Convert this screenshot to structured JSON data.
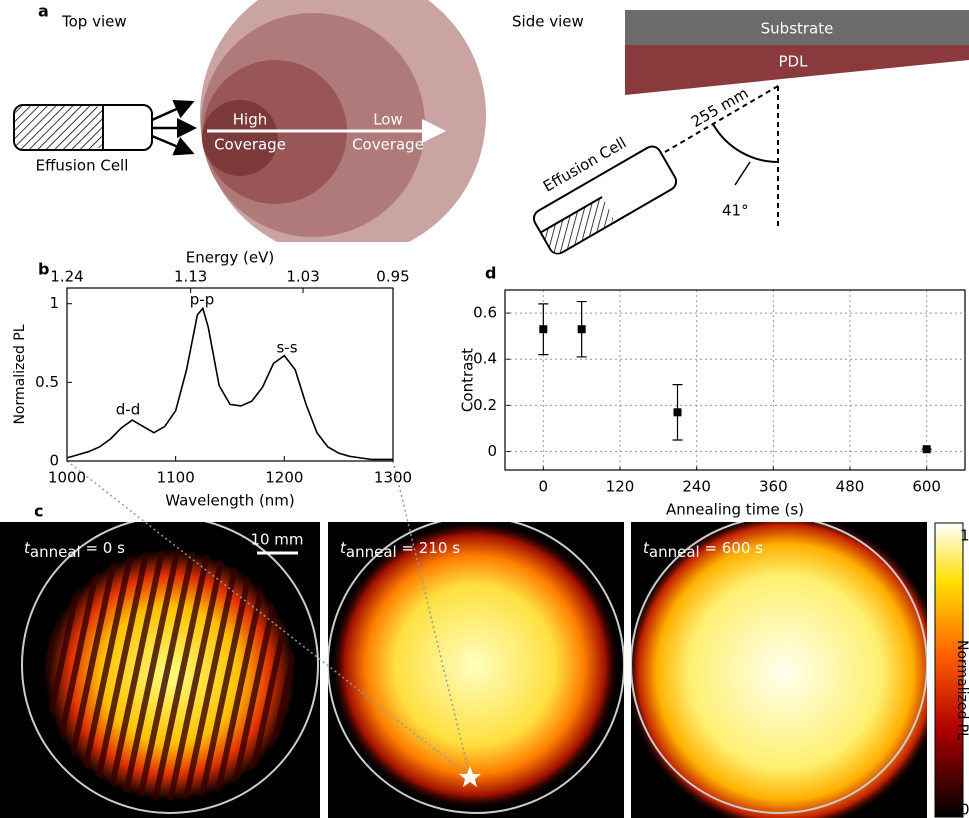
{
  "panel_labels": [
    "a",
    "b",
    "c",
    "d"
  ],
  "panel_a": {
    "top_view": "Top view",
    "effusion_cell": "Effusion Cell",
    "high": [
      "High",
      "Coverage"
    ],
    "low": [
      "Low",
      "Coverage"
    ],
    "side_view": "Side view",
    "substrate": "Substrate",
    "pdl": "PDL",
    "distance": "255 mm",
    "angle": "41°",
    "side_cell": "Effusion Cell"
  },
  "chart_data": [
    {
      "type": "line",
      "xlabel": "Wavelength (nm)",
      "ylabel": "Normalized PL",
      "x2label": "Energy (eV)",
      "x": [
        1000,
        1010,
        1020,
        1030,
        1040,
        1050,
        1060,
        1070,
        1080,
        1090,
        1100,
        1110,
        1120,
        1125,
        1130,
        1140,
        1150,
        1160,
        1170,
        1180,
        1190,
        1200,
        1210,
        1220,
        1230,
        1240,
        1250,
        1260,
        1270,
        1280,
        1290,
        1300
      ],
      "values": [
        0.02,
        0.04,
        0.06,
        0.09,
        0.14,
        0.21,
        0.26,
        0.22,
        0.18,
        0.22,
        0.32,
        0.58,
        0.93,
        0.97,
        0.85,
        0.48,
        0.36,
        0.35,
        0.38,
        0.47,
        0.62,
        0.67,
        0.58,
        0.36,
        0.18,
        0.09,
        0.05,
        0.03,
        0.02,
        0.01,
        0.01,
        0.01
      ],
      "color": "#000000",
      "xlim": [
        1000,
        1300
      ],
      "xticks": [
        1000,
        1100,
        1200,
        1300
      ],
      "x2lim": [
        1.24,
        0.95
      ],
      "x2ticks": [
        1.24,
        1.13,
        1.03,
        0.95
      ],
      "ylim": [
        0,
        1.1
      ],
      "yticks": [
        0,
        0.5,
        1
      ],
      "annotations": [
        "d-d",
        "p-p",
        "s-s"
      ]
    },
    {
      "type": "scatter",
      "xlabel": "Annealing time (s)",
      "ylabel": "Contrast",
      "x": [
        0,
        60,
        210,
        600
      ],
      "values": [
        0.53,
        0.53,
        0.17,
        0.01
      ],
      "errors": [
        0.11,
        0.12,
        0.12,
        0
      ],
      "color": "#000000",
      "xlim": [
        -60,
        660
      ],
      "xticks": [
        0,
        120,
        240,
        360,
        480,
        600
      ],
      "ylim": [
        -0.08,
        0.7
      ],
      "yticks": [
        0,
        0.2,
        0.4,
        0.6
      ],
      "grid": true
    }
  ],
  "panel_c": {
    "images": [
      {
        "t": "t",
        "sub": "anneal",
        "rest": " = 0 s"
      },
      {
        "t": "t",
        "sub": "anneal",
        "rest": " = 210 s"
      },
      {
        "t": "t",
        "sub": "anneal",
        "rest": " = 600 s"
      }
    ],
    "scale_bar": "10 mm",
    "colorbar": {
      "max": 1,
      "min": 0,
      "label": "Normalized PL"
    }
  }
}
